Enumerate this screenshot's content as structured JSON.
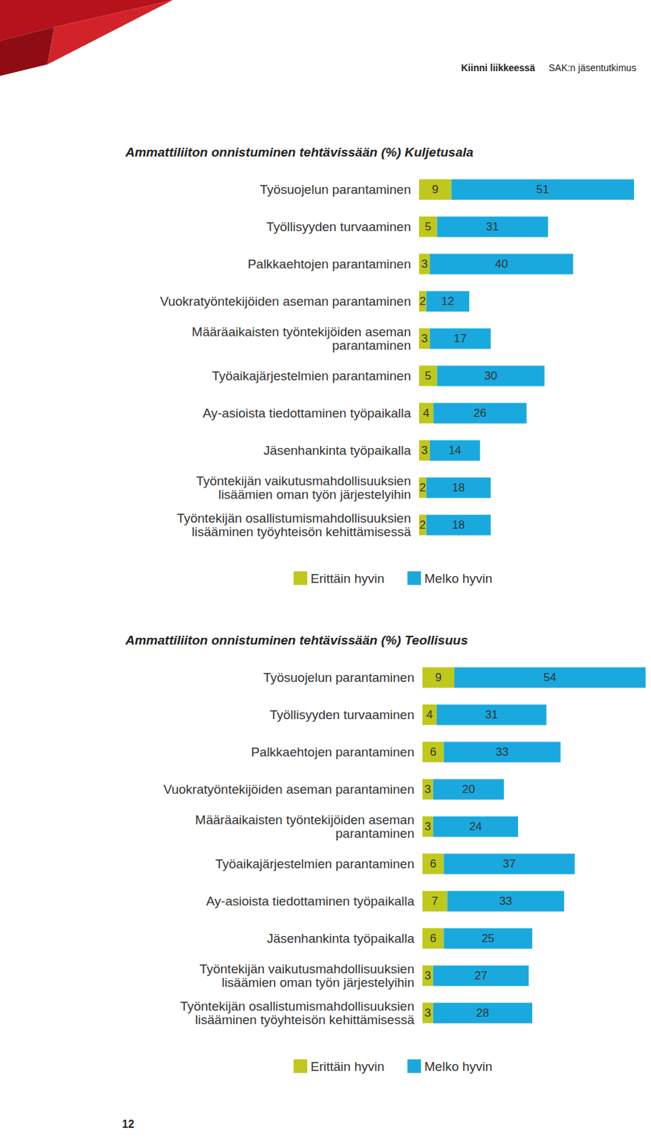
{
  "header": {
    "publication": "Kiinni liikkeessä",
    "series": "SAK:n jäsentutkimus"
  },
  "page_number": 12,
  "chart_data": [
    {
      "type": "bar",
      "title": "Ammattiliiton onnistuminen tehtävissään (%) Kuljetusala",
      "orientation": "horizontal",
      "stacked": true,
      "data_labels": true,
      "tick_labels": "y",
      "grid": false,
      "legend": "bottom",
      "xlim": [
        0,
        60
      ],
      "categories": [
        "Työsuojelun parantaminen",
        "Työllisyyden turvaaminen",
        "Palkkaehtojen parantaminen",
        "Vuokratyöntekijöiden aseman parantaminen",
        "Määräaikaisten työntekijöiden aseman\nparantaminen",
        "Työaikajärjestelmien parantaminen",
        "Ay-asioista tiedottaminen työpaikalla",
        "Jäsenhankinta työpaikalla",
        "Työntekijän vaikutusmahdollisuuksien\nlisäämien oman työn järjestelyihin",
        "Työntekijän osallistumismahdollisuuksien\nlisääminen työyhteisön kehittämisessä"
      ],
      "series": [
        {
          "name": "Erittäin hyvin",
          "color": "#bfc81b",
          "values": [
            9,
            5,
            3,
            2,
            3,
            5,
            4,
            3,
            2,
            2
          ]
        },
        {
          "name": "Melko hyvin",
          "color": "#1aa9df",
          "values": [
            51,
            31,
            40,
            12,
            17,
            30,
            26,
            14,
            18,
            18
          ]
        }
      ]
    },
    {
      "type": "bar",
      "title": "Ammattiliiton onnistuminen tehtävissään (%) Teollisuus",
      "orientation": "horizontal",
      "stacked": true,
      "data_labels": true,
      "tick_labels": "y",
      "grid": false,
      "legend": "bottom",
      "xlim": [
        0,
        63
      ],
      "categories": [
        "Työsuojelun parantaminen",
        "Työllisyyden turvaaminen",
        "Palkkaehtojen parantaminen",
        "Vuokratyöntekijöiden aseman parantaminen",
        "Määräaikaisten työntekijöiden aseman\nparantaminen",
        "Työaikajärjestelmien parantaminen",
        "Ay-asioista tiedottaminen työpaikalla",
        "Jäsenhankinta työpaikalla",
        "Työntekijän vaikutusmahdollisuuksien\nlisäämien oman työn järjestelyihin",
        "Työntekijän osallistumismahdollisuuksien\nlisääminen työyhteisön kehittämisessä"
      ],
      "series": [
        {
          "name": "Erittäin hyvin",
          "color": "#bfc81b",
          "values": [
            9,
            4,
            6,
            3,
            3,
            6,
            7,
            6,
            3,
            3
          ]
        },
        {
          "name": "Melko hyvin",
          "color": "#1aa9df",
          "values": [
            54,
            31,
            33,
            20,
            24,
            37,
            33,
            25,
            27,
            28
          ]
        }
      ]
    }
  ]
}
